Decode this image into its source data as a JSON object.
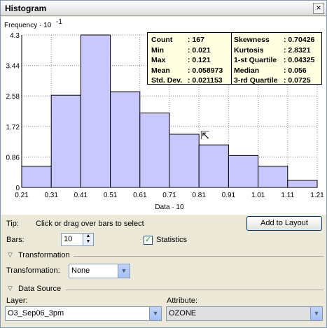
{
  "window": {
    "title": "Histogram",
    "close_symbol": "×"
  },
  "chart": {
    "ylabel": "Frequency · 10",
    "ylabel_exp": "-1",
    "xlabel": "Data · 10",
    "bar_color": "#c8c8ff"
  },
  "chart_data": {
    "type": "bar",
    "title": "Histogram",
    "xlabel": "Data · 10",
    "ylabel": "Frequency · 10^-1",
    "bin_edges": [
      0.21,
      0.31,
      0.41,
      0.51,
      0.61,
      0.71,
      0.81,
      0.91,
      1.01,
      1.11,
      1.21
    ],
    "x_tick_labels": [
      "0.21",
      "0.31",
      "0.41",
      "0.51",
      "0.61",
      "0.71",
      "0.81",
      "0.91",
      "1.01",
      "1.11",
      "1.21"
    ],
    "y_tick_values": [
      0,
      0.86,
      1.72,
      2.58,
      3.44,
      4.3
    ],
    "y_tick_labels": [
      "0",
      "0.86",
      "1.72",
      "2.58",
      "3.44",
      "4.3"
    ],
    "values": [
      0.6,
      2.6,
      4.3,
      2.7,
      2.1,
      1.5,
      1.2,
      0.9,
      0.6,
      0.2
    ],
    "ylim": [
      0,
      4.3
    ],
    "xlim": [
      0.21,
      1.21
    ],
    "grid": true
  },
  "stats": {
    "left": [
      {
        "label": "Count",
        "value": ": 167"
      },
      {
        "label": "Min",
        "value": ": 0.021"
      },
      {
        "label": "Max",
        "value": ": 0.121"
      },
      {
        "label": "Mean",
        "value": ": 0.058973"
      },
      {
        "label": "Std. Dev.",
        "value": ": 0.021153"
      }
    ],
    "right": [
      {
        "label": "Skewness",
        "value": ": 0.70426"
      },
      {
        "label": "Kurtosis",
        "value": ": 2.8321"
      },
      {
        "label": "1-st Quartile",
        "value": ": 0.04325"
      },
      {
        "label": "Median",
        "value": ": 0.056"
      },
      {
        "label": "3-rd Quartile",
        "value": ": 0.0725"
      }
    ]
  },
  "controls": {
    "tip_label": "Tip:",
    "tip_text": "Click or drag over bars to select",
    "add_to_layout": "Add to Layout",
    "bars_label": "Bars:",
    "bars_value": "10",
    "statistics_label": "Statistics",
    "statistics_checked": "✓",
    "spin_up": "▲",
    "spin_down": "▼"
  },
  "transformation": {
    "section_title": "Transformation",
    "label": "Transformation:",
    "value": "None"
  },
  "data_source": {
    "section_title": "Data Source",
    "layer_label": "Layer:",
    "layer_value": "O3_Sep06_3pm",
    "attribute_label": "Attribute:",
    "attribute_value": "OZONE"
  },
  "icons": {
    "collapse": "▽",
    "dropdown": "▼",
    "cursor": "⇱"
  }
}
